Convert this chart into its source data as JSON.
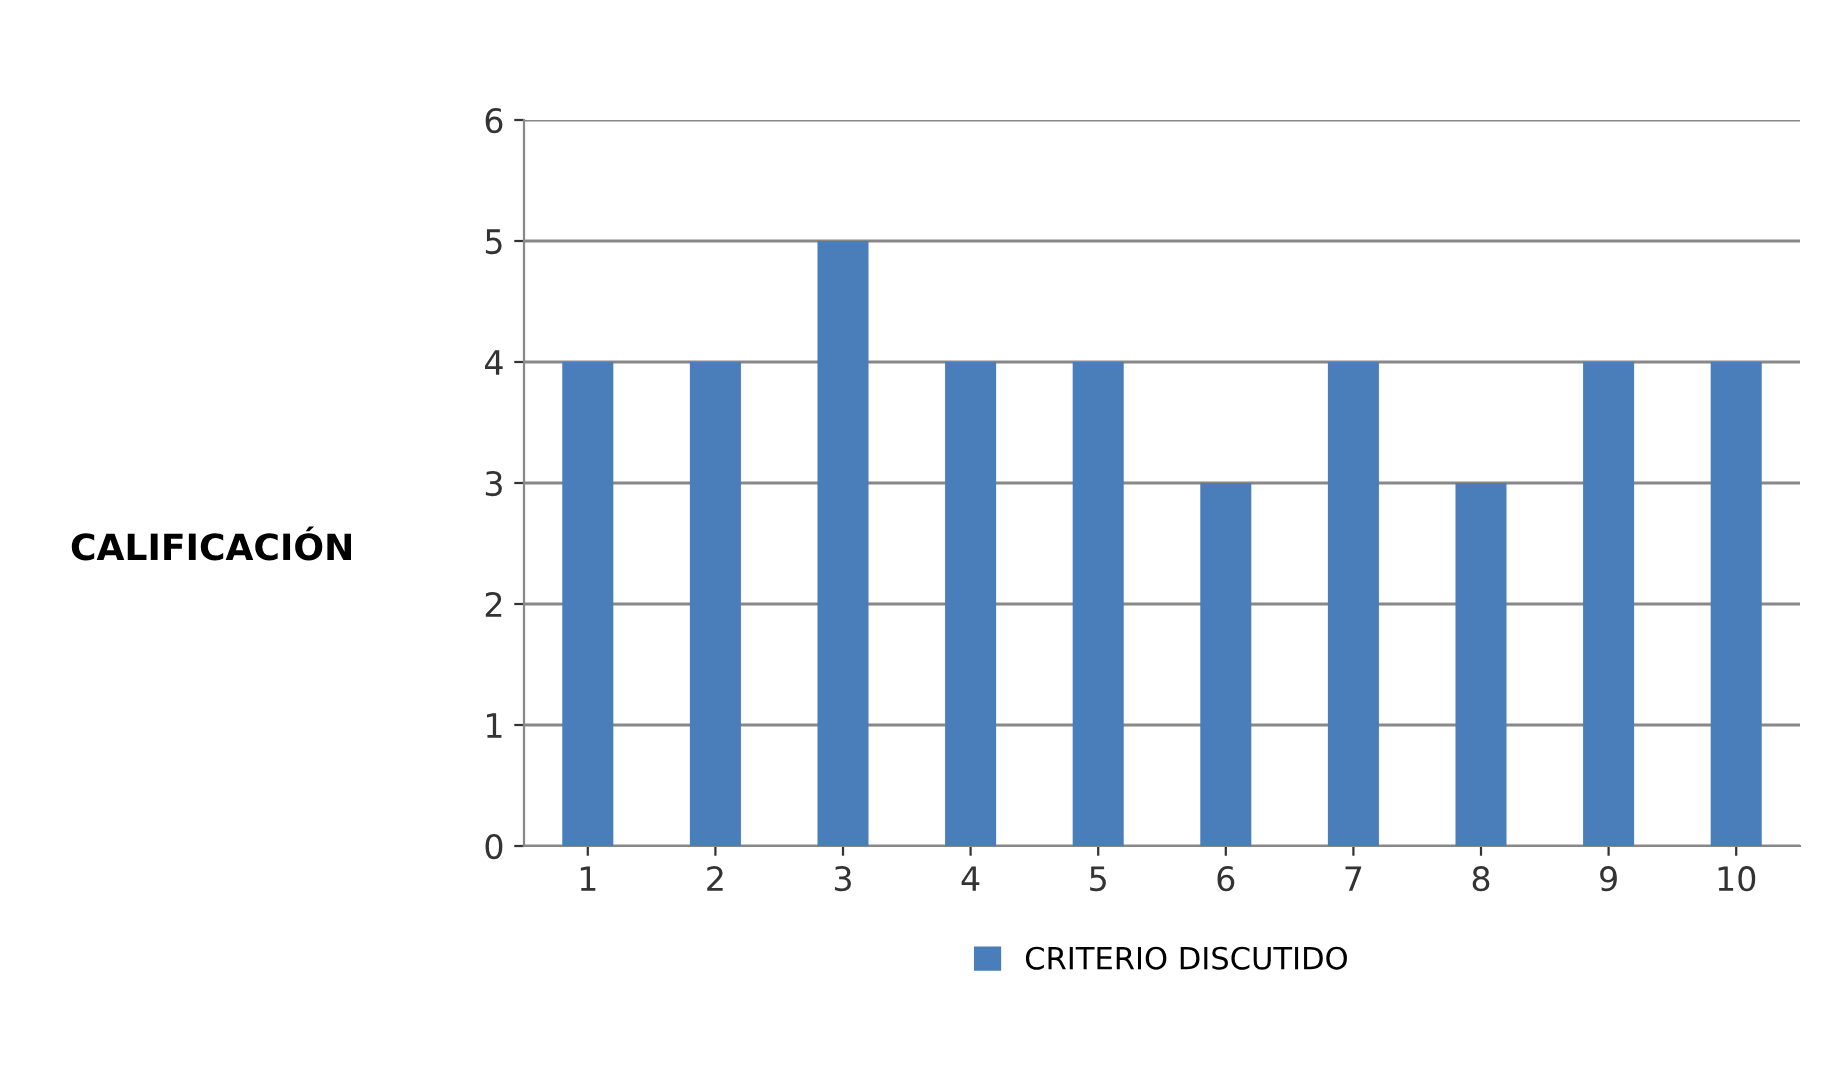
{
  "chart_data": {
    "type": "bar",
    "ylabel": "CALIFICACIÓN",
    "categories": [
      "1",
      "2",
      "3",
      "4",
      "5",
      "6",
      "7",
      "8",
      "9",
      "10"
    ],
    "series": [
      {
        "name": "CRITERIO DISCUTIDO",
        "color": "#4a7ebb",
        "values": [
          4,
          4,
          5,
          4,
          4,
          3,
          4,
          3,
          4,
          4
        ]
      }
    ],
    "ylim": [
      0,
      6
    ],
    "yticks": [
      0,
      1,
      2,
      3,
      4,
      5,
      6
    ],
    "grid": "y",
    "legend": "bottom"
  }
}
